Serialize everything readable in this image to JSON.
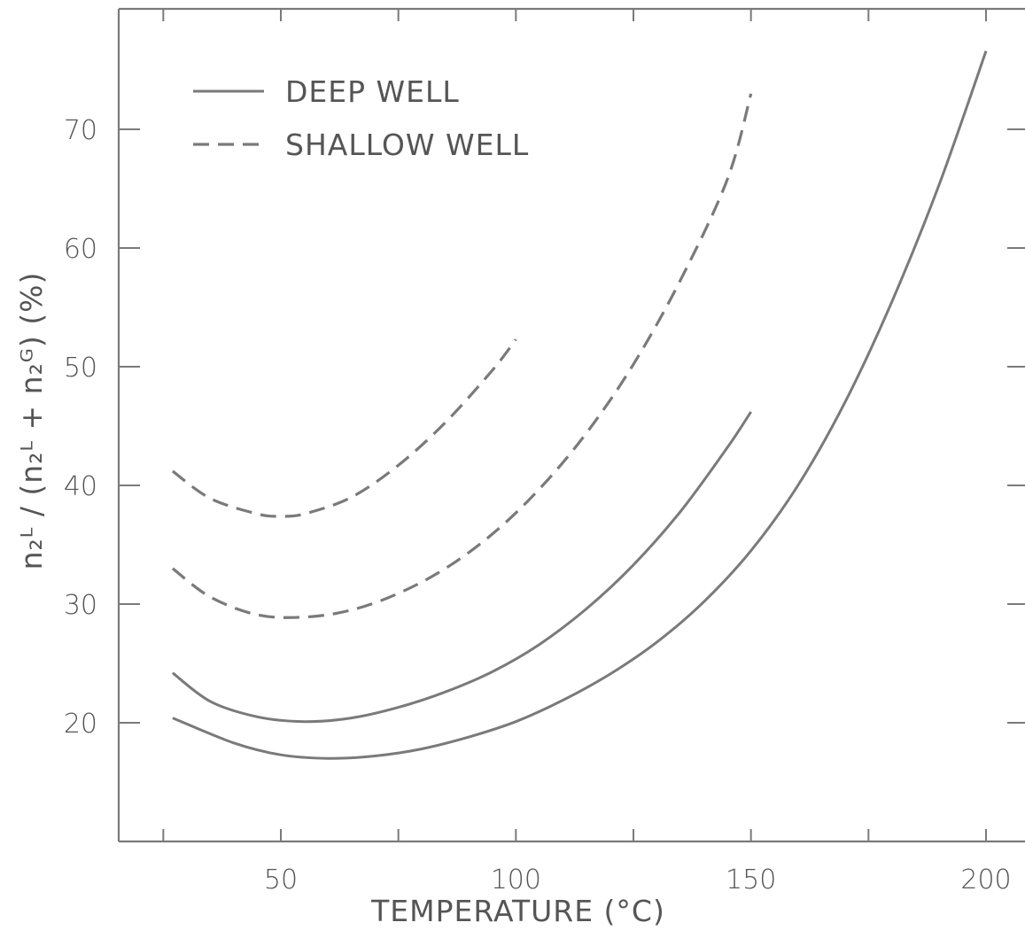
{
  "chart_data": {
    "type": "line",
    "title": "",
    "xlabel": "TEMPERATURE (°C)",
    "ylabel": "n₂ᴸ / (n₂ᴸ + n₂ᴳ) (%)",
    "xlim": [
      16,
      208
    ],
    "ylim": [
      10,
      80
    ],
    "xticks": [
      50,
      100,
      150,
      200
    ],
    "yticks": [
      20,
      30,
      40,
      50,
      60,
      70
    ],
    "legend": {
      "placement": "top-left",
      "entries": [
        {
          "label": "DEEP WELL",
          "style": "solid"
        },
        {
          "label": "SHALLOW WELL",
          "style": "dashed"
        }
      ]
    },
    "series": [
      {
        "style": "solid",
        "x": [
          27,
          35,
          45,
          55,
          65,
          75,
          85,
          95,
          105,
          115,
          125,
          135,
          145,
          150
        ],
        "y": [
          24.2,
          21.8,
          20.5,
          20.1,
          20.4,
          21.3,
          22.6,
          24.3,
          26.6,
          29.6,
          33.3,
          37.8,
          43.2,
          46.2
        ]
      },
      {
        "style": "solid",
        "x": [
          27,
          40,
          50,
          60,
          70,
          80,
          90,
          100,
          110,
          120,
          130,
          140,
          150,
          160,
          170,
          180,
          190,
          200
        ],
        "y": [
          20.4,
          18.3,
          17.3,
          17.0,
          17.2,
          17.8,
          18.8,
          20.1,
          21.9,
          24.1,
          26.8,
          30.2,
          34.5,
          40.0,
          47.0,
          55.5,
          65.3,
          76.6
        ]
      },
      {
        "style": "dashed",
        "x": [
          27,
          35,
          45,
          50,
          55,
          65,
          75,
          85,
          95,
          100
        ],
        "y": [
          41.2,
          38.9,
          37.6,
          37.4,
          37.6,
          39.0,
          41.7,
          45.3,
          49.7,
          52.3
        ]
      },
      {
        "style": "dashed",
        "x": [
          27,
          35,
          45,
          55,
          65,
          75,
          85,
          95,
          105,
          115,
          125,
          135,
          145,
          150
        ],
        "y": [
          33.0,
          30.6,
          29.1,
          28.9,
          29.5,
          30.9,
          33.0,
          35.9,
          39.7,
          44.4,
          50.2,
          57.3,
          65.8,
          73.0
        ]
      }
    ]
  }
}
